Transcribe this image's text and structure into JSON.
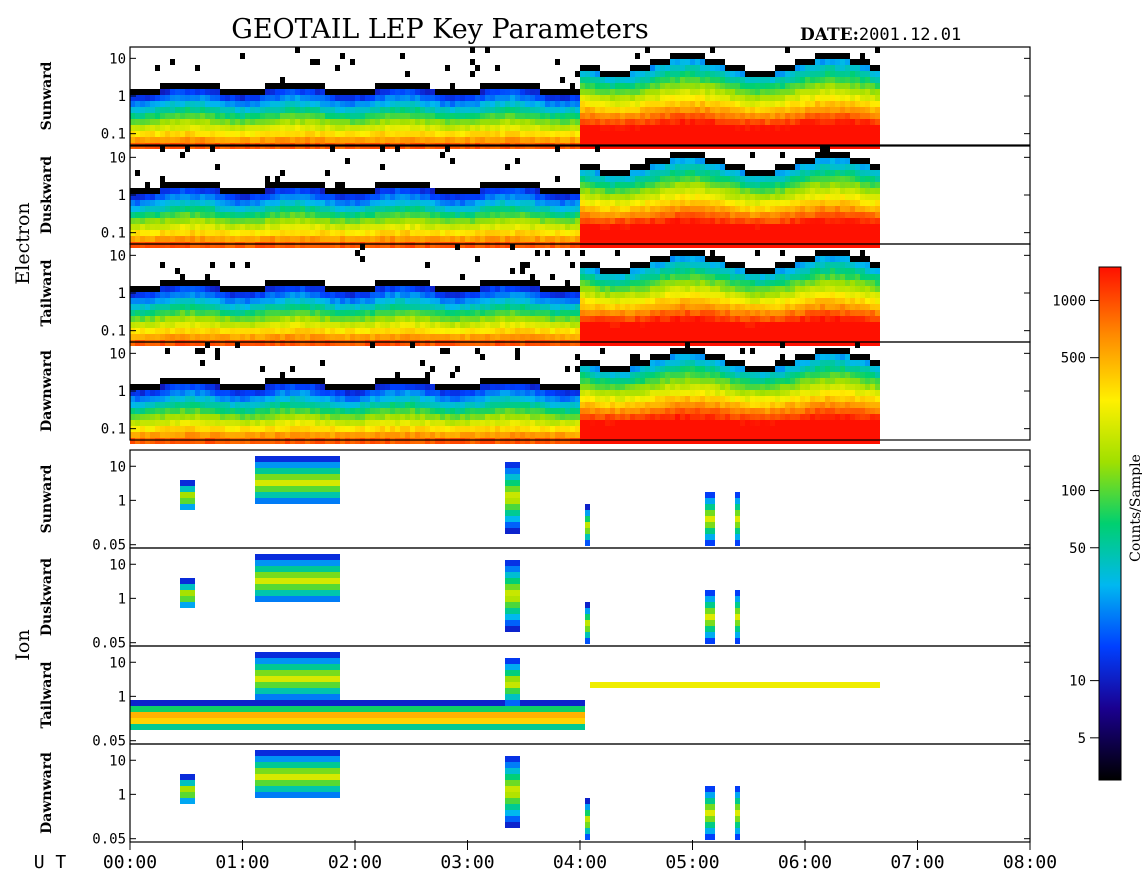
{
  "chart_data": {
    "type": "heatmap",
    "title": "GEOTAIL LEP Key Parameters",
    "date_label": "DATE:",
    "date_value": "2001.12.01",
    "xlabel": "U T",
    "x_range": [
      "00:00",
      "08:00"
    ],
    "x_ticks": [
      "00:00",
      "01:00",
      "02:00",
      "03:00",
      "04:00",
      "05:00",
      "06:00",
      "07:00",
      "08:00"
    ],
    "data_end_time": "06:40",
    "colorbar": {
      "label": "Counts/Sample",
      "scale": "log",
      "range": [
        3,
        1500
      ],
      "ticks": [
        5,
        10,
        50,
        100,
        500,
        1000
      ]
    },
    "groups": [
      {
        "name": "Electron",
        "y_scale": "log",
        "y_range": [
          0.05,
          20
        ],
        "y_ticks": [
          0.1,
          1,
          10
        ],
        "y_tick_labels": [
          "0.1",
          "1",
          "10"
        ],
        "panels": [
          {
            "name": "Sunward"
          },
          {
            "name": "Duskward"
          },
          {
            "name": "Tailward"
          },
          {
            "name": "Dawnward"
          }
        ]
      },
      {
        "name": "Ion",
        "y_scale": "log",
        "y_range": [
          0.04,
          30
        ],
        "y_ticks": [
          0.05,
          1,
          10
        ],
        "y_tick_labels": [
          "0.05",
          "1",
          "10"
        ],
        "panels": [
          {
            "name": "Sunward"
          },
          {
            "name": "Duskward"
          },
          {
            "name": "Tailward"
          },
          {
            "name": "Dawnward"
          }
        ]
      }
    ]
  }
}
